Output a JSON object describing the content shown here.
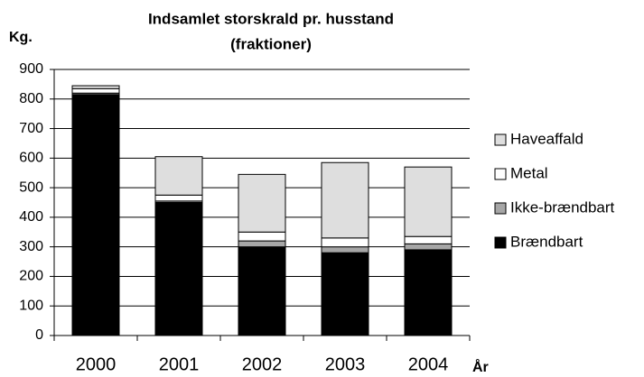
{
  "chart_data": {
    "type": "stacked_bar",
    "title": [
      "Indsamlet storskrald pr. husstand",
      "(fraktioner)"
    ],
    "y_label": "Kg.",
    "x_label": "År",
    "categories": [
      "2000",
      "2001",
      "2002",
      "2003",
      "2004"
    ],
    "series": [
      {
        "name": "Brændbart",
        "color": "#000000",
        "values": [
          815,
          450,
          300,
          280,
          290
        ]
      },
      {
        "name": "Ikke-brændbart",
        "color": "#a6a6a6",
        "values": [
          5,
          5,
          20,
          20,
          20
        ]
      },
      {
        "name": "Metal",
        "color": "#ffffff",
        "values": [
          15,
          20,
          30,
          30,
          25
        ]
      },
      {
        "name": "Haveaffald",
        "color": "#dedede",
        "values": [
          10,
          130,
          195,
          255,
          235
        ]
      }
    ],
    "ylim": [
      0,
      900
    ],
    "yticks": [
      0,
      100,
      200,
      300,
      400,
      500,
      600,
      700,
      800,
      900
    ],
    "grid": true
  }
}
